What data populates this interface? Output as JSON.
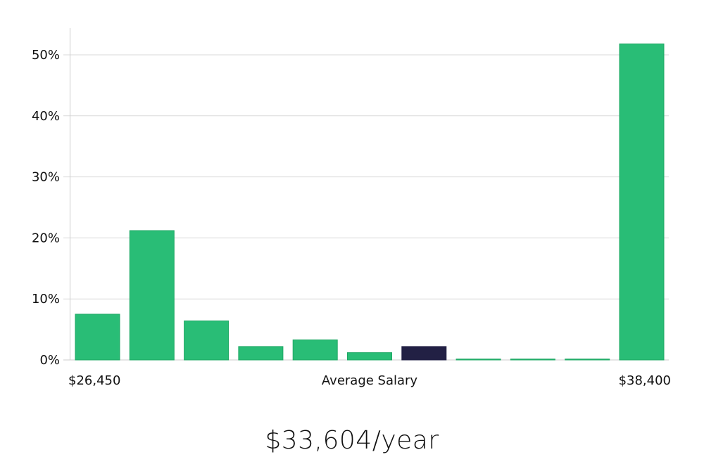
{
  "chart_data": {
    "type": "bar",
    "title": "",
    "xlabel": "",
    "ylabel": "",
    "ylim": [
      0,
      54
    ],
    "y_ticks": [
      {
        "value": 0,
        "label": "0%"
      },
      {
        "value": 10,
        "label": "10%"
      },
      {
        "value": 20,
        "label": "20%"
      },
      {
        "value": 30,
        "label": "30%"
      },
      {
        "value": 40,
        "label": "40%"
      },
      {
        "value": 50,
        "label": "50%"
      }
    ],
    "grid": true,
    "values": [
      7.5,
      21.2,
      6.4,
      2.2,
      3.3,
      1.2,
      2.2,
      0.15,
      0.15,
      0.15,
      51.8
    ],
    "highlight_index": 6,
    "colors": {
      "bar": "#29bd76",
      "bar_stroke": "#1fa864",
      "highlight": "#222044",
      "grid": "#d9d9d9",
      "axis": "#cccccc"
    },
    "x_axis_labels": {
      "min": "$26,450",
      "center": "Average Salary",
      "max": "$38,400"
    }
  },
  "caption": {
    "salary": "$33,604/year"
  }
}
